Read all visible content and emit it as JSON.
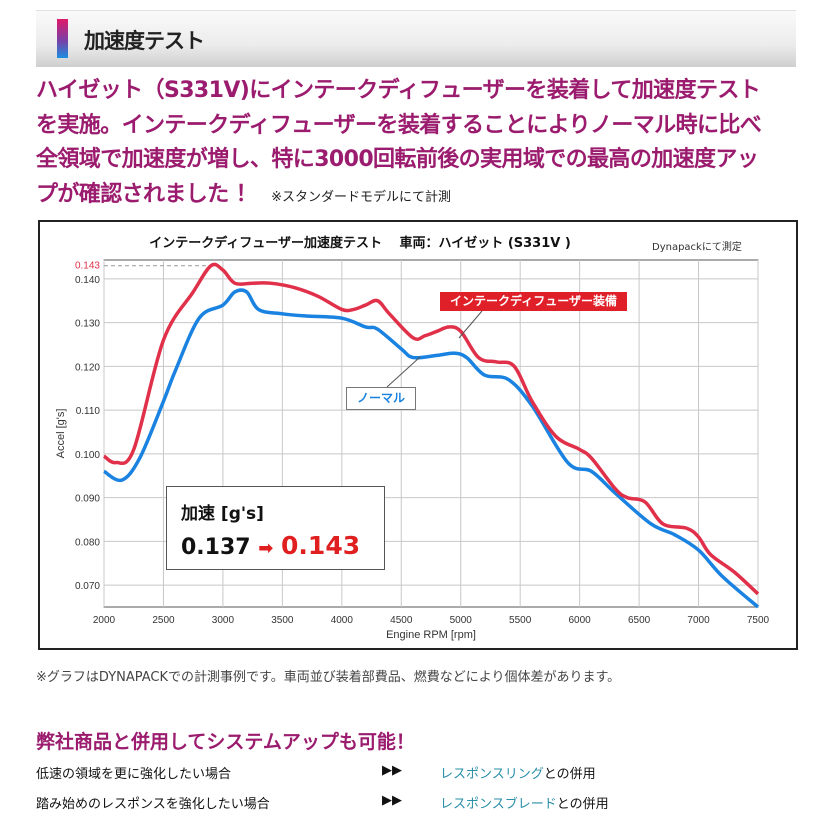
{
  "header": {
    "title": "加速度テスト",
    "accent_gradient": [
      "#e0196a",
      "#1a8fe0"
    ]
  },
  "intro": {
    "lines": [
      "ハイゼット（S331V)にインテークディフューザーを装着して加速度テスト",
      "を実施。インテークディフューザーを装着することによりノーマル時に比べ",
      "全領域で加速度が増し、特に3000回転前後の実用域での最高の加速度アッ",
      "プが確認されました ！"
    ],
    "note": "※スタンダードモデルにて計測"
  },
  "chart_data": {
    "type": "line",
    "title": "インテークディフューザー加速度テスト　 車両：ハイゼット (S331V )",
    "source_note": "Dynapackにて測定",
    "xlabel": "Engine RPM [rpm]",
    "ylabel": "Accel [g's]",
    "xlim": [
      2000,
      7500
    ],
    "ylim": [
      0.065,
      0.1443
    ],
    "xticks": [
      "2000",
      "2500",
      "3000",
      "3500",
      "4000",
      "4500",
      "5000",
      "5500",
      "6000",
      "6500",
      "7000",
      "7500"
    ],
    "yticks": [
      "0.070",
      "0.080",
      "0.090",
      "0.100",
      "0.110",
      "0.120",
      "0.130",
      "0.140"
    ],
    "peak_marker": {
      "label": "0.143",
      "value": 0.143
    },
    "grid": true,
    "series": [
      {
        "name": "インテークディフューザー装備",
        "color": "#e0304a",
        "x": [
          2000,
          2100,
          2250,
          2500,
          2750,
          2900,
          3000,
          3100,
          3250,
          3400,
          3600,
          3800,
          4000,
          4100,
          4200,
          4300,
          4400,
          4600,
          4700,
          4800,
          4900,
          5000,
          5150,
          5300,
          5450,
          5600,
          5800,
          6000,
          6100,
          6300,
          6400,
          6550,
          6700,
          6900,
          7000,
          7100,
          7300,
          7500
        ],
        "y": [
          0.0995,
          0.098,
          0.101,
          0.126,
          0.137,
          0.143,
          0.142,
          0.139,
          0.139,
          0.139,
          0.138,
          0.136,
          0.133,
          0.133,
          0.134,
          0.135,
          0.132,
          0.1265,
          0.127,
          0.128,
          0.129,
          0.128,
          0.122,
          0.121,
          0.12,
          0.112,
          0.104,
          0.101,
          0.099,
          0.092,
          0.09,
          0.089,
          0.084,
          0.083,
          0.081,
          0.077,
          0.073,
          0.068
        ]
      },
      {
        "name": "ノーマル",
        "color": "#1a82e0",
        "x": [
          2000,
          2150,
          2300,
          2500,
          2600,
          2800,
          3000,
          3100,
          3200,
          3300,
          3500,
          3700,
          4000,
          4200,
          4300,
          4500,
          4600,
          4800,
          4950,
          5050,
          5200,
          5400,
          5600,
          5900,
          6100,
          6300,
          6600,
          6800,
          7000,
          7200,
          7500
        ],
        "y": [
          0.096,
          0.094,
          0.099,
          0.112,
          0.119,
          0.131,
          0.134,
          0.137,
          0.137,
          0.133,
          0.132,
          0.1315,
          0.131,
          0.129,
          0.1285,
          0.124,
          0.122,
          0.1225,
          0.123,
          0.122,
          0.118,
          0.117,
          0.111,
          0.098,
          0.096,
          0.091,
          0.084,
          0.0815,
          0.078,
          0.072,
          0.065
        ]
      }
    ],
    "inset": {
      "title": "加速 [g's]",
      "before": "0.137",
      "arrow": "➡",
      "after": "0.143"
    }
  },
  "footnote": "※グラフはDYNAPACKでの計測事例です。車両並び装着部費品、燃費などにより個体差があります。",
  "section": {
    "title": "弊社商品と併用してシステムアップも可能！",
    "rows": [
      {
        "condition": "低速の領域を更に強化したい場合",
        "arrow": "▶▶",
        "product": "レスポンスリング",
        "suffix": "との併用"
      },
      {
        "condition": "踏み始めのレスポンスを強化したい場合",
        "arrow": "▶▶",
        "product": "レスポンスブレード",
        "suffix": "との併用"
      }
    ]
  }
}
